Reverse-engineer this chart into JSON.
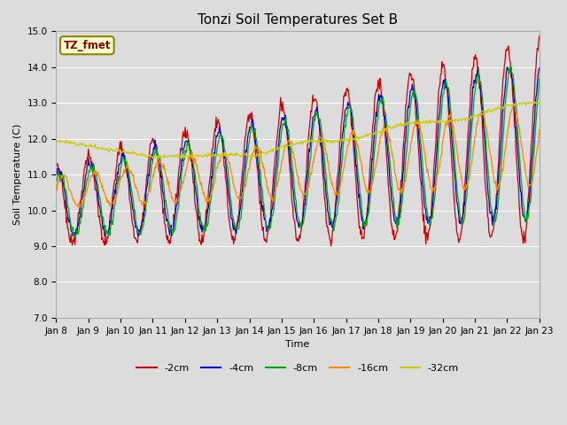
{
  "title": "Tonzi Soil Temperatures Set B",
  "xlabel": "Time",
  "ylabel": "Soil Temperature (C)",
  "ylim": [
    7.0,
    15.0
  ],
  "yticks": [
    7.0,
    8.0,
    9.0,
    10.0,
    11.0,
    12.0,
    13.0,
    14.0,
    15.0
  ],
  "series_colors": {
    "-2cm": "#cc0000",
    "-4cm": "#0000cc",
    "-8cm": "#00aa00",
    "-16cm": "#ff8800",
    "-32cm": "#cccc00"
  },
  "legend_label": "TZ_fmet",
  "legend_border": "#888800",
  "legend_fill": "#ffffcc",
  "fig_bg": "#dcdcdc",
  "plot_bg": "#dcdcdc",
  "title_fontsize": 11,
  "axis_fontsize": 8,
  "tick_fontsize": 7.5
}
